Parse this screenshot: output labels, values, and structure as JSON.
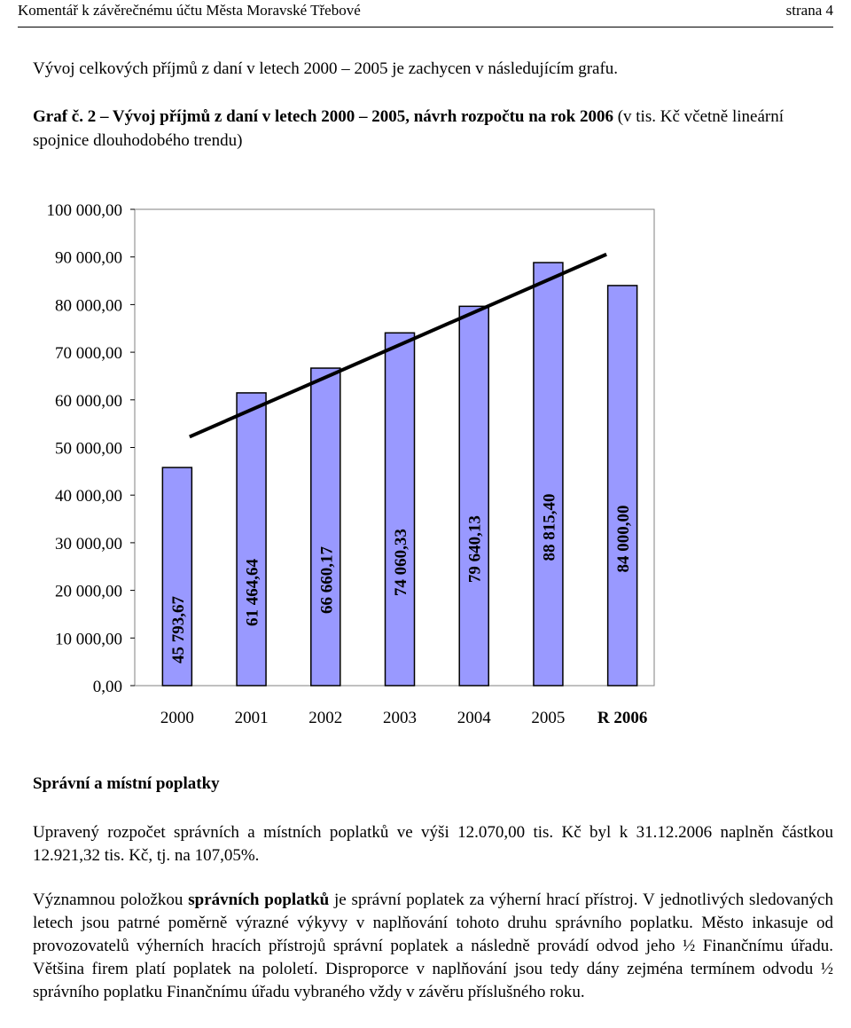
{
  "header": {
    "left": "Komentář k závěrečnému účtu Města Moravské Třebové",
    "right": "strana 4"
  },
  "intro": "Vývoj celkových příjmů z daní v letech 2000 – 2005 je zachycen v následujícím grafu.",
  "graph_caption": {
    "bold": "Graf č. 2 – Vývoj příjmů z daní v letech 2000 – 2005, návrh rozpočtu na rok 2006",
    "normal": " (v tis. Kč včetně lineární spojnice dlouhodobého trendu)"
  },
  "chart_data": {
    "type": "bar",
    "categories": [
      "2000",
      "2001",
      "2002",
      "2003",
      "2004",
      "2005",
      "R 2006"
    ],
    "values": [
      45793.67,
      61464.64,
      66660.17,
      74060.33,
      79640.13,
      88815.4,
      84000.0
    ],
    "data_labels": [
      "45 793,67",
      "61 464,64",
      "66 660,17",
      "74 060,33",
      "79 640,13",
      "88 815,40",
      "84 000,00"
    ],
    "y_ticks": [
      "0,00",
      "10 000,00",
      "20 000,00",
      "30 000,00",
      "40 000,00",
      "50 000,00",
      "60 000,00",
      "70 000,00",
      "80 000,00",
      "90 000,00",
      "100 000,00"
    ],
    "ylim": [
      0,
      100000
    ],
    "trendline": {
      "start": 52250,
      "end": 90550
    },
    "bar_color": "#9999ff",
    "grid": false,
    "legend": false
  },
  "section_title": "Správní a místní poplatky",
  "paragraph1": "Upravený rozpočet správních a místních poplatků ve výši 12.070,00 tis. Kč byl k 31.12.2006 naplněn částkou 12.921,32 tis. Kč, tj. na 107,05%.",
  "paragraph2": {
    "pre": "Významnou položkou ",
    "bold": "správních poplatků",
    "post": " je správní poplatek za výherní hrací přístroj. V jednotlivých sledovaných letech jsou patrné poměrně výrazné výkyvy v naplňování tohoto druhu správního poplatku. Město inkasuje od provozovatelů výherních hracích přístrojů správní poplatek a následně provádí odvod jeho ½ Finančnímu úřadu. Většina firem platí poplatek na pololetí. Disproporce v naplňování jsou tedy dány zejména termínem odvodu ½ správního poplatku Finančnímu úřadu vybraného vždy v závěru příslušného roku."
  }
}
